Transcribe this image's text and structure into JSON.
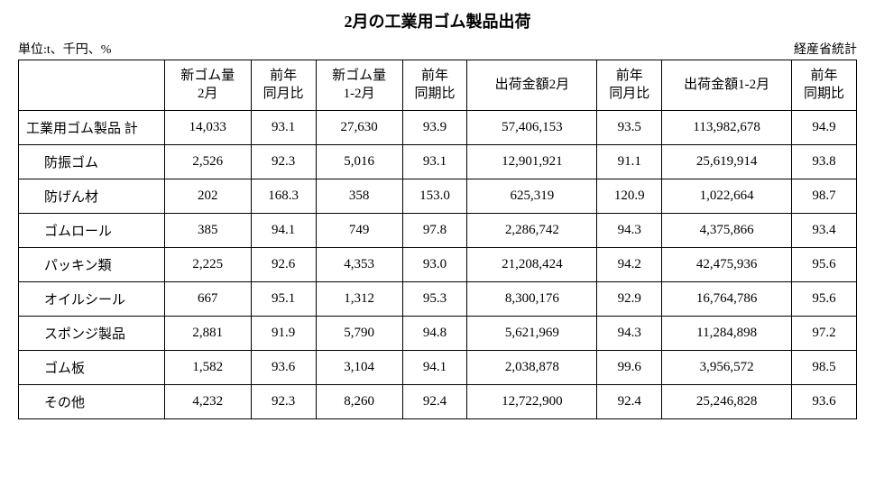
{
  "title": "2月の工業用ゴム製品出荷",
  "unit_label": "単位:t、千円、%",
  "source_label": "経産省統計",
  "table": {
    "columns": [
      "",
      "新ゴム量\n2月",
      "前年\n同月比",
      "新ゴム量\n1-2月",
      "前年\n同期比",
      "出荷金額2月",
      "前年\n同月比",
      "出荷金額1-2月",
      "前年\n同期比"
    ],
    "rows": [
      {
        "label": "工業用ゴム製品 計",
        "indent": false,
        "cells": [
          "14,033",
          "93.1",
          "27,630",
          "93.9",
          "57,406,153",
          "93.5",
          "113,982,678",
          "94.9"
        ]
      },
      {
        "label": "防振ゴム",
        "indent": true,
        "cells": [
          "2,526",
          "92.3",
          "5,016",
          "93.1",
          "12,901,921",
          "91.1",
          "25,619,914",
          "93.8"
        ]
      },
      {
        "label": "防げん材",
        "indent": true,
        "cells": [
          "202",
          "168.3",
          "358",
          "153.0",
          "625,319",
          "120.9",
          "1,022,664",
          "98.7"
        ]
      },
      {
        "label": "ゴムロール",
        "indent": true,
        "cells": [
          "385",
          "94.1",
          "749",
          "97.8",
          "2,286,742",
          "94.3",
          "4,375,866",
          "93.4"
        ]
      },
      {
        "label": "パッキン類",
        "indent": true,
        "cells": [
          "2,225",
          "92.6",
          "4,353",
          "93.0",
          "21,208,424",
          "94.2",
          "42,475,936",
          "95.6"
        ]
      },
      {
        "label": "オイルシール",
        "indent": true,
        "cells": [
          "667",
          "95.1",
          "1,312",
          "95.3",
          "8,300,176",
          "92.9",
          "16,764,786",
          "95.6"
        ]
      },
      {
        "label": "スポンジ製品",
        "indent": true,
        "cells": [
          "2,881",
          "91.9",
          "5,790",
          "94.8",
          "5,621,969",
          "94.3",
          "11,284,898",
          "97.2"
        ]
      },
      {
        "label": "ゴム板",
        "indent": true,
        "cells": [
          "1,582",
          "93.6",
          "3,104",
          "94.1",
          "2,038,878",
          "99.6",
          "3,956,572",
          "98.5"
        ]
      },
      {
        "label": "その他",
        "indent": true,
        "cells": [
          "4,232",
          "92.3",
          "8,260",
          "92.4",
          "12,722,900",
          "92.4",
          "25,246,828",
          "93.6"
        ]
      }
    ]
  },
  "style": {
    "background_color": "#ffffff",
    "border_color": "#000000",
    "title_fontsize": 18,
    "body_fontsize": 15,
    "header_fontsize": 14
  }
}
